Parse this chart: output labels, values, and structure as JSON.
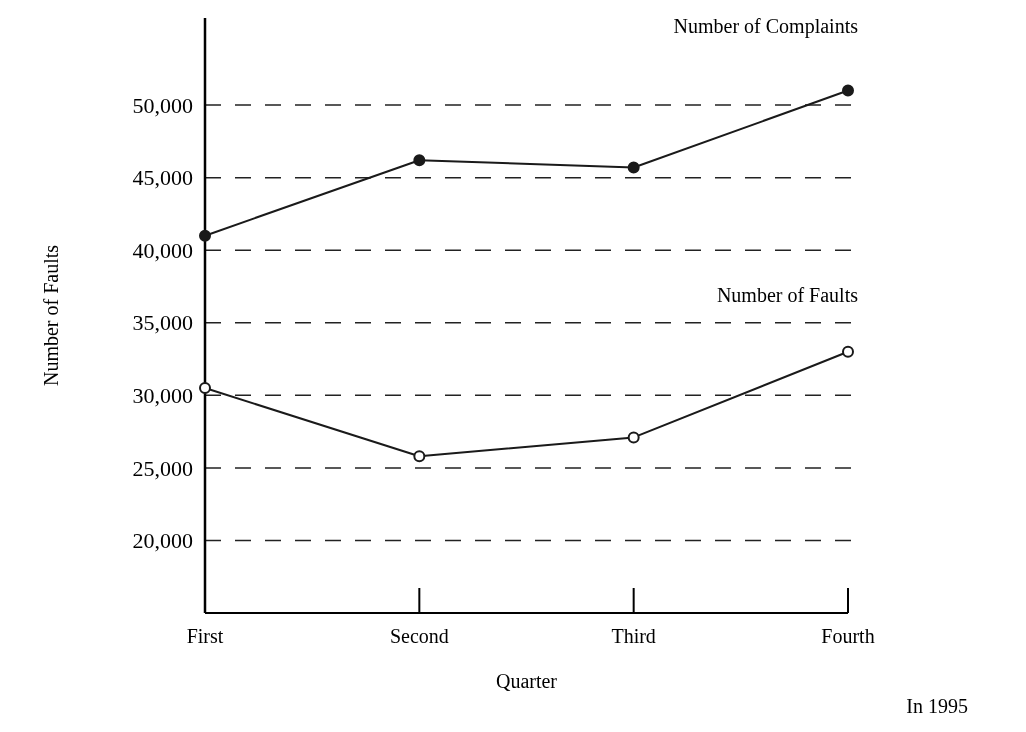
{
  "chart_data": {
    "type": "line",
    "xlabel": "Quarter",
    "ylabel": "Number of Faults",
    "categories": [
      "First",
      "Second",
      "Third",
      "Fourth"
    ],
    "series": [
      {
        "name": "Number of Complaints",
        "color": "#1a1a1a",
        "values": [
          41000,
          46200,
          45700,
          51000
        ]
      },
      {
        "name": "Number of Faults",
        "color": "#1a1a1a",
        "values": [
          30500,
          25800,
          27100,
          33000
        ]
      }
    ],
    "ylim": [
      15000,
      56000
    ],
    "yticks": [
      {
        "value": 20000,
        "label": "20,000"
      },
      {
        "value": 25000,
        "label": "25,000"
      },
      {
        "value": 30000,
        "label": "30,000"
      },
      {
        "value": 35000,
        "label": "35,000"
      },
      {
        "value": 40000,
        "label": "40,000"
      },
      {
        "value": 45000,
        "label": "45,000"
      },
      {
        "value": 50000,
        "label": "50,000"
      }
    ],
    "grid": "y",
    "marker": "circle",
    "annotations": [
      "In 1995"
    ]
  }
}
